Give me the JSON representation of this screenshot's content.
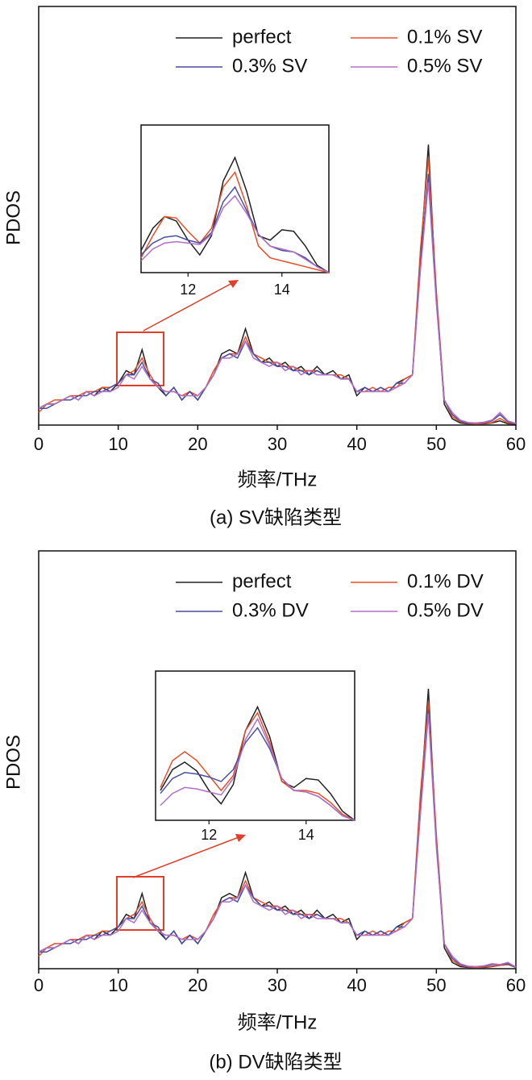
{
  "chart_data": [
    {
      "type": "line",
      "caption": "(a) SV缺陷类型",
      "xlabel": "频率/THz",
      "ylabel": "PDOS",
      "xlim": [
        0,
        60
      ],
      "ylim": [
        0,
        100
      ],
      "xticks": [
        0,
        10,
        20,
        30,
        40,
        50,
        60
      ],
      "x": [
        0,
        1,
        2,
        3,
        4,
        5,
        6,
        7,
        8,
        9,
        10,
        11,
        12,
        13,
        14,
        15,
        16,
        17,
        18,
        19,
        20,
        21,
        22,
        23,
        24,
        25,
        26,
        27,
        28,
        29,
        30,
        31,
        32,
        33,
        34,
        35,
        36,
        37,
        38,
        39,
        40,
        41,
        42,
        43,
        44,
        45,
        46,
        47,
        48,
        49,
        50,
        51,
        52,
        53,
        54,
        55,
        56,
        57,
        58,
        59,
        60
      ],
      "series": [
        {
          "name": "perfect",
          "color": "#222222",
          "values": [
            4,
            5,
            5,
            6,
            7,
            6,
            8,
            7,
            9,
            8,
            10,
            13,
            12,
            18,
            11,
            9,
            7,
            9,
            6,
            8,
            6,
            9,
            12,
            17,
            18,
            17,
            23,
            17,
            15,
            16,
            14,
            15,
            13,
            14,
            12,
            14,
            12,
            13,
            11,
            12,
            7,
            9,
            8,
            9,
            8,
            10,
            11,
            12,
            40,
            67,
            30,
            5,
            1.5,
            0.5,
            0.3,
            0.3,
            0.3,
            0.5,
            1,
            0.3,
            0.2
          ]
        },
        {
          "name": "0.1% SV",
          "color": "#e8502a",
          "values": [
            3,
            5,
            6,
            6,
            7,
            7,
            8,
            8,
            9,
            9,
            10,
            12,
            13,
            16,
            12,
            9,
            8,
            8,
            7,
            8,
            7,
            9,
            13,
            16,
            17,
            17,
            21,
            17,
            16,
            15,
            15,
            14,
            14,
            13,
            13,
            13,
            12,
            12,
            12,
            11,
            8,
            8,
            9,
            8,
            9,
            9,
            11,
            12,
            42,
            64,
            32,
            6,
            2,
            0.8,
            0.4,
            0.3,
            0.4,
            0.6,
            1.6,
            0.5,
            0.3
          ]
        },
        {
          "name": "0.3% SV",
          "color": "#4a4fa0",
          "values": [
            4,
            4,
            5,
            6,
            6,
            7,
            7,
            8,
            8,
            9,
            10,
            12,
            12,
            15,
            11,
            10,
            7,
            9,
            6,
            8,
            6,
            9,
            12,
            16,
            17,
            16,
            20,
            17,
            15,
            15,
            14,
            14,
            13,
            13,
            12,
            13,
            12,
            12,
            11,
            11,
            8,
            9,
            8,
            9,
            8,
            10,
            10,
            12,
            38,
            60,
            30,
            6,
            2.5,
            1,
            0.5,
            0.5,
            0.6,
            1,
            2.5,
            0.8,
            0.3
          ]
        },
        {
          "name": "0.5% SV",
          "color": "#b070c8",
          "values": [
            4,
            5,
            5,
            6,
            7,
            6,
            8,
            7,
            8,
            8,
            9,
            12,
            11,
            14,
            11,
            9,
            8,
            8,
            7,
            7,
            7,
            9,
            12,
            16,
            16,
            17,
            20,
            16,
            15,
            14,
            15,
            13,
            14,
            12,
            13,
            12,
            12,
            12,
            11,
            11,
            8,
            8,
            8,
            8,
            8,
            9,
            10,
            12,
            37,
            58,
            29,
            6,
            3,
            1.2,
            0.6,
            0.5,
            0.7,
            1.2,
            3,
            1,
            0.4
          ]
        }
      ],
      "inset": {
        "xlim": [
          11,
          15
        ],
        "ylim": [
          0,
          100
        ],
        "xticks": [
          12,
          14
        ],
        "x": [
          11,
          11.25,
          11.5,
          11.75,
          12,
          12.25,
          12.5,
          12.75,
          13,
          13.25,
          13.5,
          13.75,
          14,
          14.25,
          14.5,
          14.75,
          15
        ],
        "series": [
          {
            "values": [
              15,
              30,
              38,
              35,
              22,
              12,
              25,
              62,
              78,
              55,
              25,
              22,
              29,
              28,
              18,
              5,
              0
            ]
          },
          {
            "values": [
              10,
              25,
              38,
              37,
              28,
              20,
              30,
              58,
              68,
              45,
              18,
              10,
              8,
              6,
              4,
              2,
              0
            ]
          },
          {
            "values": [
              12,
              20,
              24,
              25,
              22,
              20,
              27,
              48,
              58,
              42,
              26,
              18,
              15,
              14,
              10,
              4,
              0
            ]
          },
          {
            "values": [
              8,
              16,
              20,
              21,
              20,
              19,
              26,
              44,
              52,
              40,
              26,
              18,
              16,
              14,
              9,
              4,
              0
            ]
          }
        ]
      }
    },
    {
      "type": "line",
      "caption": "(b) DV缺陷类型",
      "xlabel": "频率/THz",
      "ylabel": "PDOS",
      "xlim": [
        0,
        60
      ],
      "ylim": [
        0,
        100
      ],
      "xticks": [
        0,
        10,
        20,
        30,
        40,
        50,
        60
      ],
      "x": [
        0,
        1,
        2,
        3,
        4,
        5,
        6,
        7,
        8,
        9,
        10,
        11,
        12,
        13,
        14,
        15,
        16,
        17,
        18,
        19,
        20,
        21,
        22,
        23,
        24,
        25,
        26,
        27,
        28,
        29,
        30,
        31,
        32,
        33,
        34,
        35,
        36,
        37,
        38,
        39,
        40,
        41,
        42,
        43,
        44,
        45,
        46,
        47,
        48,
        49,
        50,
        51,
        52,
        53,
        54,
        55,
        56,
        57,
        58,
        59,
        60
      ],
      "series": [
        {
          "name": "perfect",
          "color": "#222222",
          "values": [
            4,
            5,
            5,
            6,
            7,
            6,
            8,
            7,
            9,
            8,
            10,
            13,
            12,
            18,
            11,
            9,
            7,
            9,
            6,
            8,
            6,
            9,
            12,
            17,
            18,
            17,
            23,
            17,
            15,
            16,
            14,
            15,
            13,
            14,
            12,
            14,
            12,
            13,
            11,
            12,
            7,
            9,
            8,
            9,
            8,
            10,
            11,
            12,
            40,
            67,
            30,
            5,
            1.5,
            0.5,
            0.3,
            0.3,
            0.3,
            0.5,
            0.8,
            1,
            0.3
          ]
        },
        {
          "name": "0.1% DV",
          "color": "#e8502a",
          "values": [
            3,
            5,
            6,
            6,
            7,
            7,
            8,
            8,
            9,
            9,
            10,
            12,
            13,
            16,
            12,
            9,
            8,
            8,
            7,
            8,
            7,
            9,
            13,
            16,
            17,
            17,
            21,
            17,
            16,
            15,
            15,
            14,
            14,
            13,
            13,
            13,
            12,
            12,
            12,
            11,
            8,
            8,
            9,
            8,
            9,
            9,
            11,
            12,
            42,
            64,
            32,
            6,
            2,
            0.8,
            0.4,
            0.3,
            0.4,
            0.6,
            0.8,
            1,
            0.3
          ]
        },
        {
          "name": "0.3% DV",
          "color": "#4a4fa0",
          "values": [
            4,
            4,
            5,
            6,
            6,
            7,
            7,
            8,
            8,
            9,
            10,
            12,
            12,
            15,
            11,
            10,
            7,
            9,
            6,
            8,
            6,
            9,
            12,
            16,
            17,
            16,
            20,
            17,
            15,
            15,
            14,
            14,
            13,
            13,
            12,
            13,
            12,
            12,
            11,
            11,
            8,
            9,
            8,
            9,
            8,
            10,
            10,
            12,
            38,
            62,
            30,
            6,
            2.5,
            1,
            0.5,
            0.5,
            0.6,
            1,
            1,
            1.2,
            0.3
          ]
        },
        {
          "name": "0.5% DV",
          "color": "#b070c8",
          "values": [
            4,
            5,
            5,
            6,
            7,
            6,
            8,
            7,
            8,
            8,
            9,
            12,
            11,
            14,
            11,
            9,
            8,
            8,
            7,
            7,
            7,
            9,
            12,
            16,
            16,
            17,
            20,
            16,
            15,
            14,
            15,
            13,
            14,
            12,
            13,
            12,
            12,
            12,
            11,
            11,
            8,
            8,
            8,
            8,
            8,
            9,
            10,
            12,
            37,
            61,
            29,
            6,
            3,
            1.2,
            0.6,
            0.5,
            0.7,
            1.2,
            1,
            1.5,
            0.4
          ]
        }
      ],
      "inset": {
        "xlim": [
          10.9,
          15
        ],
        "ylim": [
          0,
          100
        ],
        "xticks": [
          12,
          14
        ],
        "x": [
          11,
          11.25,
          11.5,
          11.75,
          12,
          12.25,
          12.5,
          12.75,
          13,
          13.25,
          13.5,
          13.75,
          14,
          14.25,
          14.5,
          14.75,
          15
        ],
        "series": [
          {
            "values": [
              20,
              34,
              39,
              33,
              20,
              11,
              24,
              60,
              76,
              56,
              26,
              22,
              28,
              27,
              18,
              6,
              0
            ]
          },
          {
            "values": [
              22,
              40,
              46,
              40,
              30,
              20,
              30,
              60,
              72,
              52,
              26,
              20,
              20,
              18,
              12,
              4,
              0
            ]
          },
          {
            "values": [
              18,
              28,
              32,
              31,
              29,
              26,
              34,
              52,
              62,
              48,
              28,
              20,
              19,
              16,
              10,
              3,
              0
            ]
          },
          {
            "values": [
              10,
              18,
              22,
              21,
              19,
              17,
              28,
              54,
              68,
              50,
              28,
              20,
              19,
              16,
              10,
              3,
              0
            ]
          }
        ]
      }
    }
  ]
}
